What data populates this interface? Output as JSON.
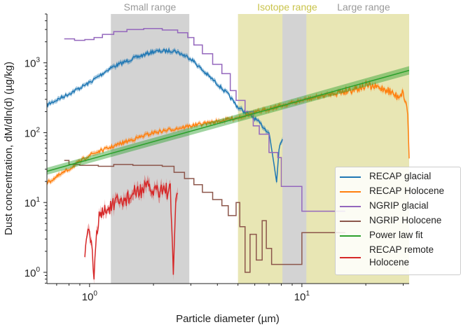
{
  "chart_data": {
    "type": "line",
    "xlabel": "Particle diameter (µm)",
    "ylabel": "Dust concentration, dM/dln(d) (µg/kg)",
    "xscale": "log",
    "yscale": "log",
    "xlim": [
      0.63,
      32
    ],
    "ylim": [
      0.69,
      5000
    ],
    "xticks": [
      {
        "value": 1,
        "base": "10",
        "exp": "0"
      },
      {
        "value": 10,
        "base": "10",
        "exp": "1"
      }
    ],
    "yticks": [
      {
        "value": 1,
        "base": "10",
        "exp": "0"
      },
      {
        "value": 10,
        "base": "10",
        "exp": "1"
      },
      {
        "value": 100,
        "base": "10",
        "exp": "2"
      },
      {
        "value": 1000,
        "base": "10",
        "exp": "3"
      }
    ],
    "ranges": [
      {
        "name": "Small range",
        "x": [
          1.26,
          2.95
        ],
        "color": "#d3d3d3",
        "label_color": "#999999"
      },
      {
        "name": "Isotope range",
        "x": [
          5.0,
          32
        ],
        "color": "#e8e6b4",
        "label_color": "#c9c34a"
      },
      {
        "name": "Large range",
        "x": [
          8.1,
          10.5
        ],
        "color": "#d3d3d3",
        "label_color": "#999999"
      }
    ],
    "legend_position": "lower-right",
    "series": [
      {
        "name": "RECAP glacial",
        "color": "#1f77b4",
        "style": "noisy",
        "noise": 0.05,
        "points": [
          [
            0.63,
            250
          ],
          [
            0.8,
            360
          ],
          [
            1.0,
            520
          ],
          [
            1.26,
            850
          ],
          [
            1.6,
            1150
          ],
          [
            2.0,
            1450
          ],
          [
            2.5,
            1500
          ],
          [
            3.0,
            1150
          ],
          [
            3.5,
            720
          ],
          [
            4.0,
            500
          ],
          [
            4.5,
            350
          ],
          [
            5.0,
            230
          ],
          [
            6.0,
            160
          ],
          [
            7.0,
            100
          ],
          [
            7.4,
            35
          ],
          [
            7.6,
            20
          ],
          [
            7.8,
            60
          ],
          [
            8.1,
            85
          ]
        ]
      },
      {
        "name": "RECAP Holocene",
        "color": "#ff7f0e",
        "style": "noisy",
        "noise": 0.05,
        "points": [
          [
            0.63,
            19
          ],
          [
            0.8,
            30
          ],
          [
            1.0,
            48
          ],
          [
            1.5,
            75
          ],
          [
            2.0,
            100
          ],
          [
            3.0,
            125
          ],
          [
            4.0,
            145
          ],
          [
            5.0,
            165
          ],
          [
            7.0,
            220
          ],
          [
            10.0,
            290
          ],
          [
            15.0,
            380
          ],
          [
            20.0,
            470
          ],
          [
            25.0,
            420
          ],
          [
            28.0,
            330
          ],
          [
            30.0,
            380
          ],
          [
            31.5,
            200
          ],
          [
            32.0,
            40
          ]
        ]
      },
      {
        "name": "NGRIP glacial",
        "color": "#9467bd",
        "style": "step",
        "points": [
          [
            0.76,
            2200
          ],
          [
            0.85,
            2100
          ],
          [
            0.95,
            2150
          ],
          [
            1.05,
            2300
          ],
          [
            1.15,
            2550
          ],
          [
            1.3,
            2800
          ],
          [
            1.5,
            3000
          ],
          [
            1.8,
            3100
          ],
          [
            2.2,
            2950
          ],
          [
            2.6,
            2700
          ],
          [
            2.9,
            2300
          ],
          [
            3.1,
            1800
          ],
          [
            3.4,
            1350
          ],
          [
            3.8,
            950
          ],
          [
            4.2,
            700
          ],
          [
            4.6,
            400
          ],
          [
            4.9,
            290
          ],
          [
            5.4,
            200
          ],
          [
            5.9,
            125
          ],
          [
            6.3,
            95
          ],
          [
            7.0,
            52
          ],
          [
            7.7,
            44
          ],
          [
            8.0,
            17
          ],
          [
            10.0,
            7.5
          ],
          [
            16.0,
            7.5
          ]
        ]
      },
      {
        "name": "NGRIP Holocene",
        "color": "#8c564b",
        "style": "step",
        "points": [
          [
            0.76,
            40
          ],
          [
            0.8,
            35
          ],
          [
            0.9,
            34
          ],
          [
            1.1,
            33
          ],
          [
            1.3,
            35
          ],
          [
            1.6,
            34
          ],
          [
            2.2,
            33
          ],
          [
            2.5,
            27
          ],
          [
            2.8,
            22
          ],
          [
            3.1,
            18
          ],
          [
            3.4,
            14
          ],
          [
            3.8,
            11
          ],
          [
            4.2,
            9
          ],
          [
            4.5,
            6.5
          ],
          [
            4.9,
            10
          ],
          [
            5.1,
            4.5
          ],
          [
            5.4,
            1.0
          ],
          [
            5.7,
            3.5
          ],
          [
            6.1,
            1.5
          ],
          [
            6.5,
            5.5
          ],
          [
            6.8,
            2.2
          ],
          [
            7.2,
            1.3
          ],
          [
            10.0,
            3.7
          ],
          [
            16.0,
            3.7
          ]
        ]
      },
      {
        "name": "Power law fit",
        "color": "#2ca02c",
        "style": "line",
        "points": [
          [
            0.63,
            28
          ],
          [
            32,
            780
          ]
        ]
      },
      {
        "name": "RECAP remote Holocene",
        "color": "#d62728",
        "style": "noisy",
        "noise": 0.25,
        "points": [
          [
            0.95,
            2
          ],
          [
            1.0,
            4
          ],
          [
            1.05,
            1
          ],
          [
            1.1,
            6
          ],
          [
            1.2,
            8
          ],
          [
            1.4,
            10
          ],
          [
            1.6,
            13
          ],
          [
            1.8,
            16
          ],
          [
            2.0,
            15
          ],
          [
            2.2,
            16
          ],
          [
            2.4,
            14
          ],
          [
            2.48,
            1
          ],
          [
            2.55,
            12
          ],
          [
            2.6,
            15
          ]
        ]
      }
    ]
  },
  "legend": {
    "items": [
      "RECAP glacial",
      "RECAP Holocene",
      "NGRIP glacial",
      "NGRIP Holocene",
      "Power law fit",
      "RECAP remote Holocene"
    ]
  }
}
